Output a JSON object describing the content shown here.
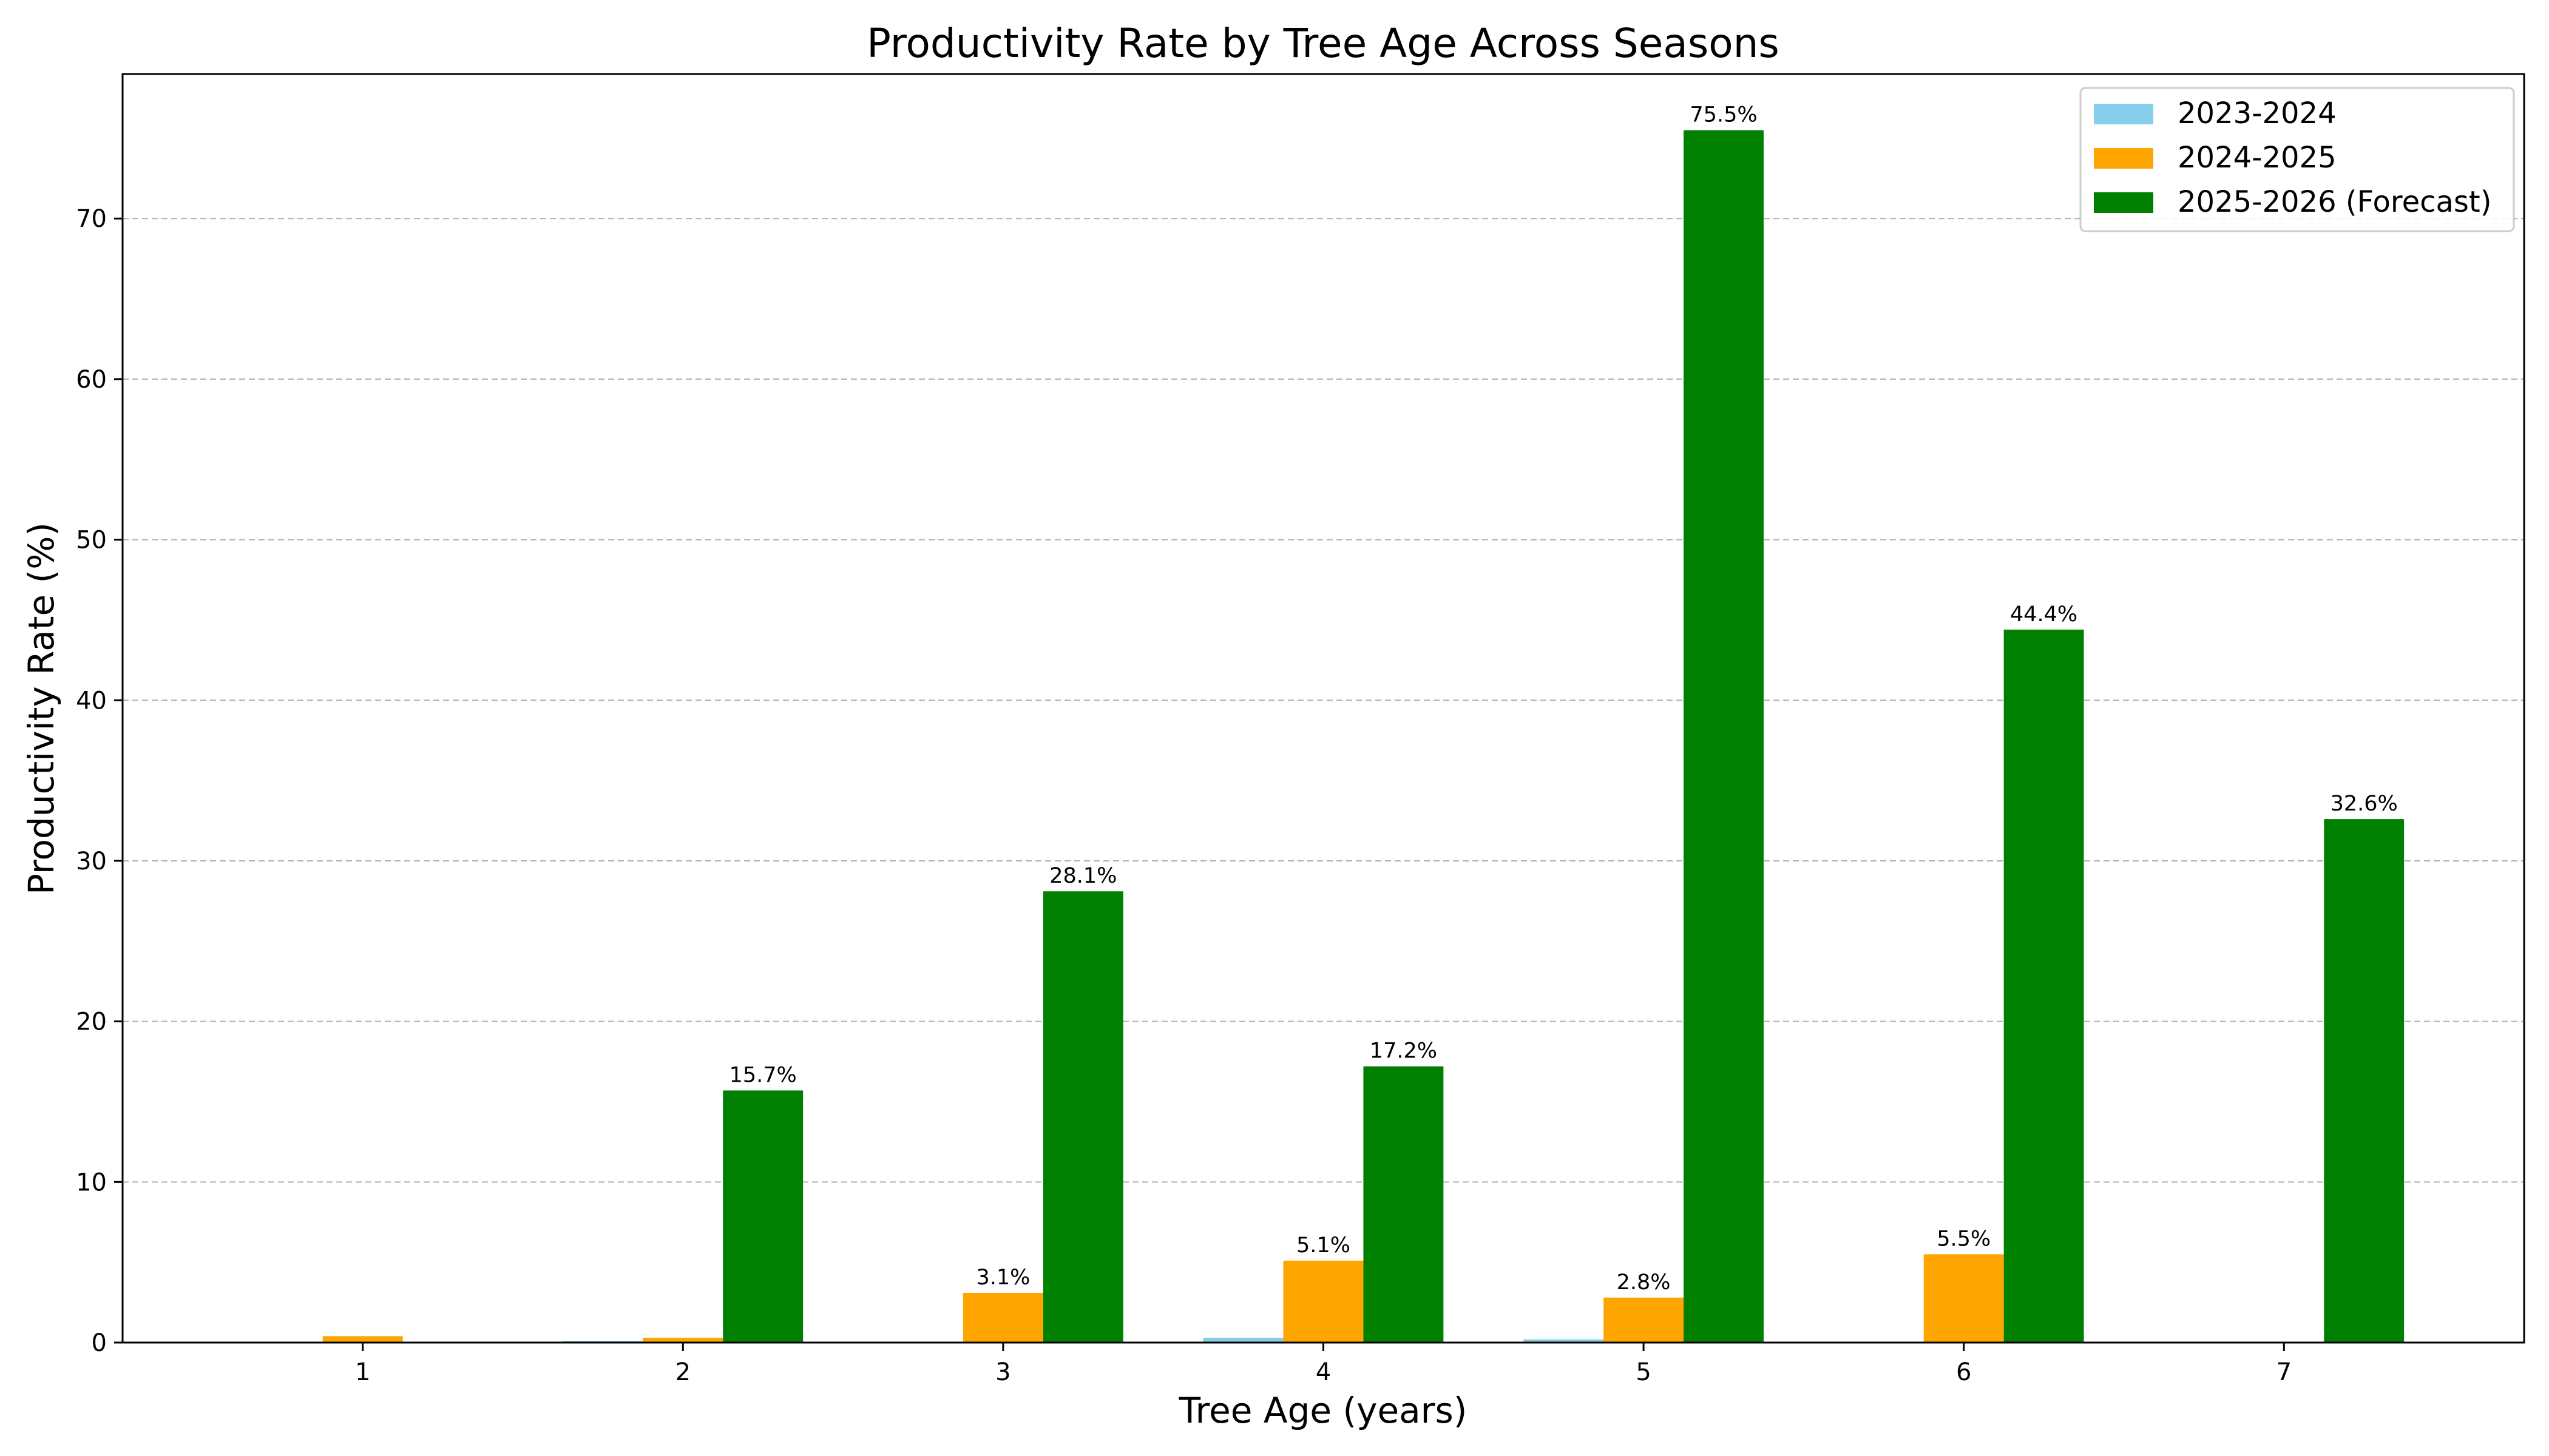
{
  "chart_data": {
    "type": "bar",
    "title": "Productivity Rate by Tree Age Across Seasons",
    "xlabel": "Tree Age (years)",
    "ylabel": "Productivity Rate (%)",
    "categories": [
      "1",
      "2",
      "3",
      "4",
      "5",
      "6",
      "7"
    ],
    "ylim": [
      0,
      79
    ],
    "yticks": [
      0,
      10,
      20,
      30,
      40,
      50,
      60,
      70
    ],
    "grid": "y-dashed",
    "legend_position": "top-right",
    "series": [
      {
        "name": "2023-2024",
        "color": "#87ceeb",
        "values": [
          0.0,
          0.1,
          0.0,
          0.3,
          0.2,
          0.0,
          0.0
        ],
        "labels": [
          "",
          "",
          "",
          "",
          "",
          "",
          ""
        ]
      },
      {
        "name": "2024-2025",
        "color": "#ffa500",
        "values": [
          0.4,
          0.3,
          3.1,
          5.1,
          2.8,
          5.5,
          0.0
        ],
        "labels": [
          "",
          "",
          "3.1%",
          "5.1%",
          "2.8%",
          "5.5%",
          ""
        ]
      },
      {
        "name": "2025-2026 (Forecast)",
        "color": "#008000",
        "values": [
          0.0,
          15.7,
          28.1,
          17.2,
          75.5,
          44.4,
          32.6
        ],
        "labels": [
          "",
          "15.7%",
          "28.1%",
          "17.2%",
          "75.5%",
          "44.4%",
          "32.6%"
        ]
      }
    ]
  }
}
